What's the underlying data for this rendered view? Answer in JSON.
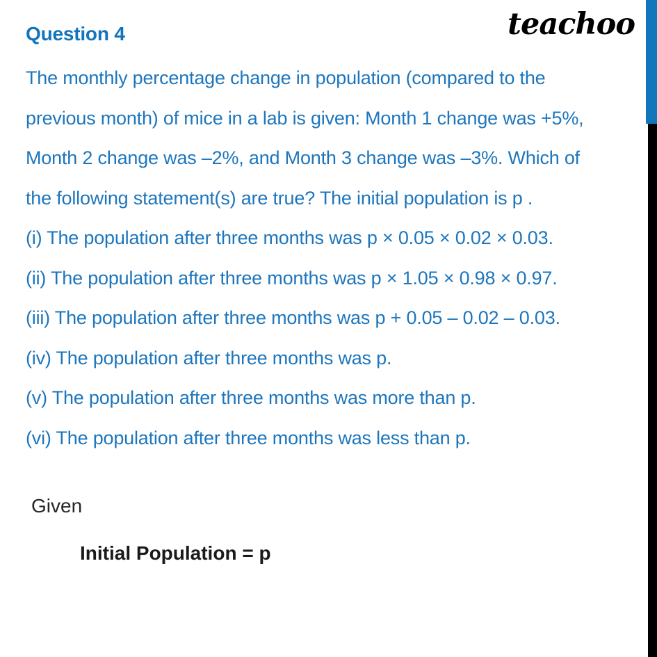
{
  "header": {
    "question_label": "Question 4",
    "logo_text": "teachoo"
  },
  "question": {
    "paragraph_lines": [
      "The monthly percentage change in population (compared to the",
      "previous month) of mice in a lab is given: Month 1 change was +5%,",
      "Month 2 change was –2%, and Month 3 change was –3%. Which of",
      "the following statement(s) are true? The initial population is p ."
    ],
    "statements": [
      "(i) The population after three months was p × 0.05 × 0.02 × 0.03.",
      "(ii) The population after three months was p × 1.05 × 0.98 × 0.97.",
      "(iii) The population after three months was p + 0.05 – 0.02 – 0.03.",
      "(iv) The population after three months was p.",
      "(v) The population after three months was more than p.",
      "(vi) The population after three months was less than p."
    ]
  },
  "solution": {
    "given_label": "Given",
    "initial_population": "Initial Population = p"
  },
  "colors": {
    "heading_blue": "#1274bc",
    "body_blue": "#1d76bd",
    "logo_black": "#000000",
    "given_gray": "#262626",
    "accent_bar_blue": "#1177bd",
    "accent_bar_black": "#000000"
  }
}
